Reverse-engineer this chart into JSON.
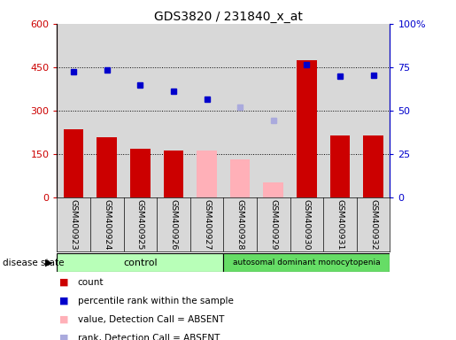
{
  "title": "GDS3820 / 231840_x_at",
  "samples": [
    "GSM400923",
    "GSM400924",
    "GSM400925",
    "GSM400926",
    "GSM400927",
    "GSM400928",
    "GSM400929",
    "GSM400930",
    "GSM400931",
    "GSM400932"
  ],
  "bar_values": [
    235,
    208,
    168,
    162,
    null,
    null,
    null,
    475,
    213,
    213
  ],
  "bar_absent_values": [
    null,
    null,
    null,
    null,
    162,
    130,
    52,
    null,
    null,
    null
  ],
  "rank_values": [
    435,
    440,
    388,
    368,
    338,
    null,
    null,
    460,
    418,
    423
  ],
  "rank_absent_values": [
    null,
    null,
    null,
    null,
    null,
    313,
    267,
    null,
    null,
    null
  ],
  "control_samples": 5,
  "disease_samples": 5,
  "ylim_left": [
    0,
    600
  ],
  "yticks_left": [
    0,
    150,
    300,
    450,
    600
  ],
  "yticks_right": [
    0,
    25,
    50,
    75,
    100
  ],
  "yticklabels_right": [
    "0",
    "25",
    "50",
    "75",
    "100%"
  ],
  "bar_color": "#cc0000",
  "bar_absent_color": "#ffb0b8",
  "rank_color": "#0000cc",
  "rank_absent_color": "#aaaadd",
  "control_color": "#b8ffb8",
  "disease_color": "#66dd66",
  "bg_color": "#d8d8d8",
  "ylabel_left_color": "#cc0000",
  "ylabel_right_color": "#0000cc",
  "bar_width": 0.6
}
